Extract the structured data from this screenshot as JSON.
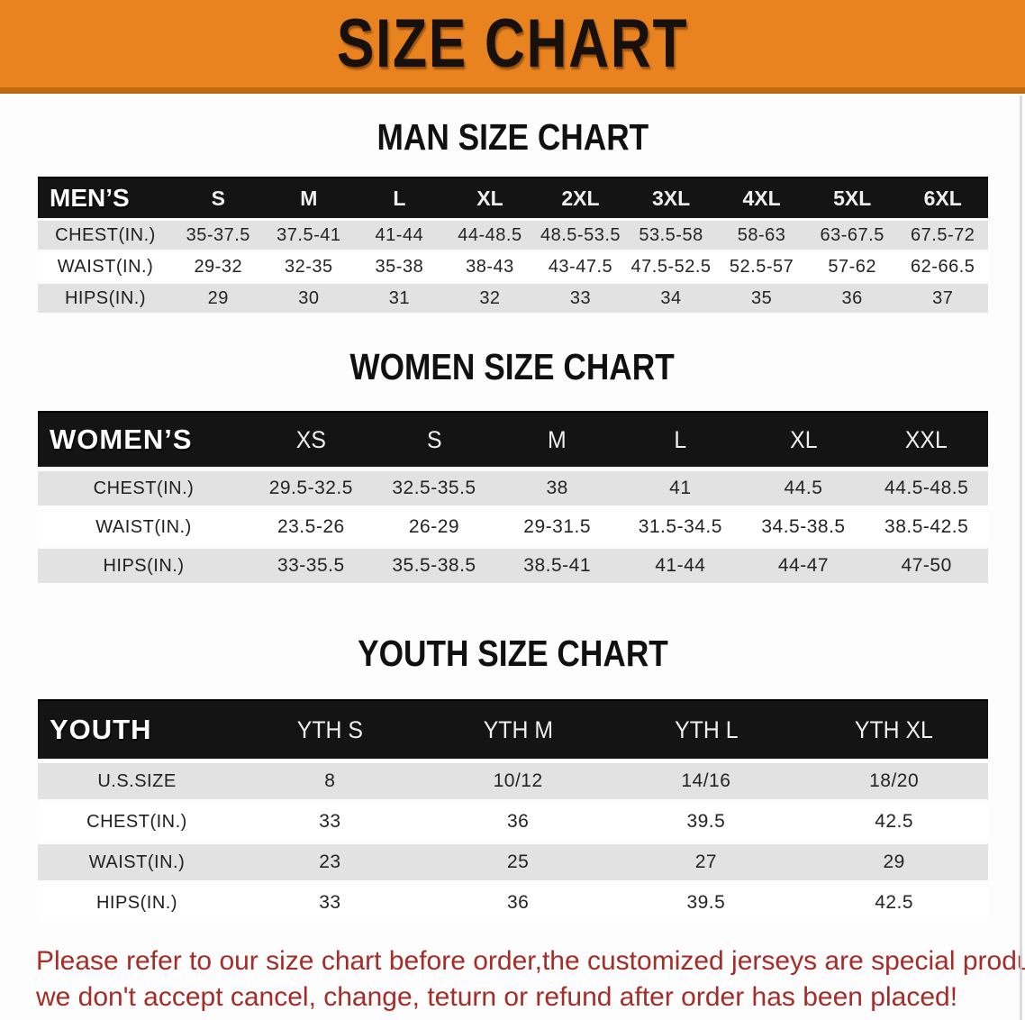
{
  "banner": {
    "title": "SIZE CHART"
  },
  "sections": [
    {
      "title": "MAN SIZE CHART",
      "table": {
        "header_label": "MEN’S",
        "sizes": [
          "S",
          "M",
          "L",
          "XL",
          "2XL",
          "3XL",
          "4XL",
          "5XL",
          "6XL"
        ],
        "rows": [
          {
            "label": "CHEST(IN.)",
            "values": [
              "35-37.5",
              "37.5-41",
              "41-44",
              "44-48.5",
              "48.5-53.5",
              "53.5-58",
              "58-63",
              "63-67.5",
              "67.5-72"
            ]
          },
          {
            "label": "WAIST(IN.)",
            "values": [
              "29-32",
              "32-35",
              "35-38",
              "38-43",
              "43-47.5",
              "47.5-52.5",
              "52.5-57",
              "57-62",
              "62-66.5"
            ]
          },
          {
            "label": "HIPS(IN.)",
            "values": [
              "29",
              "30",
              "31",
              "32",
              "33",
              "34",
              "35",
              "36",
              "37"
            ]
          }
        ]
      }
    },
    {
      "title": "WOMEN SIZE CHART",
      "table": {
        "header_label": "WOMEN’S",
        "sizes": [
          "XS",
          "S",
          "M",
          "L",
          "XL",
          "XXL"
        ],
        "rows": [
          {
            "label": "CHEST(IN.)",
            "values": [
              "29.5-32.5",
              "32.5-35.5",
              "38",
              "41",
              "44.5",
              "44.5-48.5"
            ]
          },
          {
            "label": "WAIST(IN.)",
            "values": [
              "23.5-26",
              "26-29",
              "29-31.5",
              "31.5-34.5",
              "34.5-38.5",
              "38.5-42.5"
            ]
          },
          {
            "label": "HIPS(IN.)",
            "values": [
              "33-35.5",
              "35.5-38.5",
              "38.5-41",
              "41-44",
              "44-47",
              "47-50"
            ]
          }
        ]
      }
    },
    {
      "title": "YOUTH SIZE CHART",
      "table": {
        "header_label": "YOUTH",
        "sizes": [
          "YTH S",
          "YTH M",
          "YTH L",
          "YTH XL"
        ],
        "rows": [
          {
            "label": "U.S.SIZE",
            "values": [
              "8",
              "10/12",
              "14/16",
              "18/20"
            ]
          },
          {
            "label": "CHEST(IN.)",
            "values": [
              "33",
              "36",
              "39.5",
              "42.5"
            ]
          },
          {
            "label": "WAIST(IN.)",
            "values": [
              "23",
              "25",
              "27",
              "29"
            ]
          },
          {
            "label": "HIPS(IN.)",
            "values": [
              "33",
              "36",
              "39.5",
              "42.5"
            ]
          }
        ]
      }
    }
  ],
  "disclaimer": {
    "line1": "Please refer to our size chart before order,the customized jerseys are special products,",
    "line2": "we don't accept cancel, change, teturn or refund after order has been placed!"
  },
  "colors": {
    "banner_bg": "#E8831F",
    "banner_edge": "#C06A10",
    "banner_text": "#18100A",
    "header_bg": "#141414",
    "row_gray": "#E2E2E2",
    "disclaimer_red": "#A62C28"
  }
}
